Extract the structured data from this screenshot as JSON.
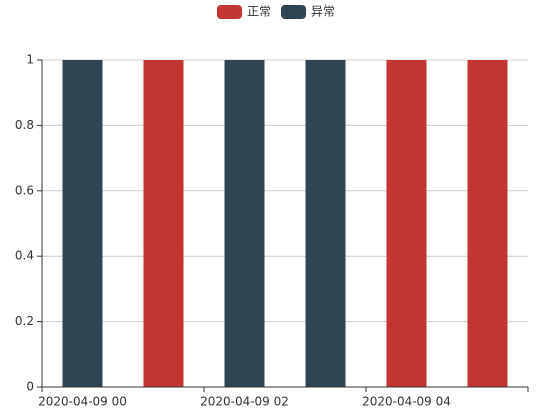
{
  "chart_data": {
    "type": "stacked-bar",
    "categories": [
      "2020-04-09 00",
      null,
      "2020-04-09 02",
      null,
      "2020-04-09 04",
      null
    ],
    "series": [
      {
        "name": "正常",
        "color": "#c23531",
        "values": [
          0,
          1,
          0,
          0,
          1,
          1
        ]
      },
      {
        "name": "异常",
        "color": "#2f4554",
        "values": [
          1,
          0,
          1,
          1,
          0,
          0
        ]
      }
    ],
    "ylim": [
      0,
      1
    ],
    "yticks": [
      0,
      0.2,
      0.4,
      0.6,
      0.8,
      1
    ],
    "grid": true,
    "legend": "top"
  }
}
